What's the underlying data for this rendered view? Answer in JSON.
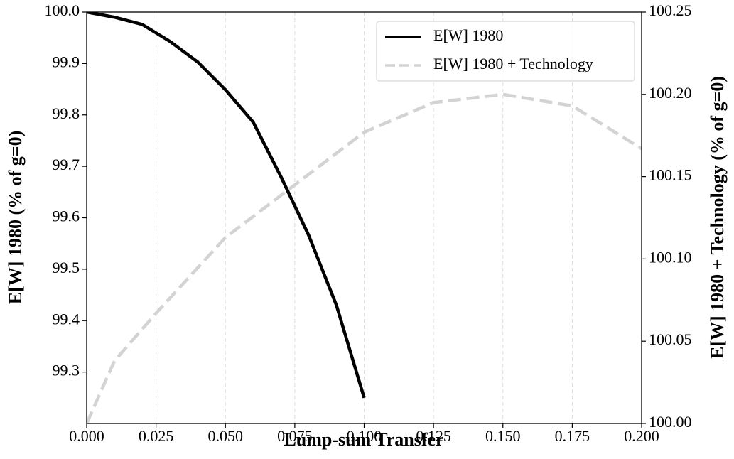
{
  "chart_data": {
    "type": "line",
    "xlabel": "Lump-sum Transfer",
    "ylabel": "E[W] 1980 (% of g=0)",
    "y2label": "E[W] 1980 + Technology (% of g=0)",
    "xlim": [
      0,
      0.2
    ],
    "ylim": [
      99.2,
      100.0
    ],
    "y2lim": [
      100.0,
      100.25
    ],
    "xticks": [
      {
        "value": 0,
        "label": "0.000"
      },
      {
        "value": 0.025,
        "label": "0.025"
      },
      {
        "value": 0.05,
        "label": "0.050"
      },
      {
        "value": 0.075,
        "label": "0.075"
      },
      {
        "value": 0.1,
        "label": "0.100"
      },
      {
        "value": 0.125,
        "label": "0.125"
      },
      {
        "value": 0.15,
        "label": "0.150"
      },
      {
        "value": 0.175,
        "label": "0.175"
      },
      {
        "value": 0.2,
        "label": "0.200"
      }
    ],
    "yticks": [
      99.3,
      99.4,
      99.5,
      99.6,
      99.7,
      99.8,
      99.9,
      {
        "value": 100.0,
        "label": "100.0"
      }
    ],
    "y2ticks": [
      {
        "value": 100.0,
        "label": "100.00"
      },
      100.05,
      {
        "value": 100.1,
        "label": "100.10"
      },
      100.15,
      {
        "value": 100.2,
        "label": "100.20"
      },
      100.25
    ],
    "grid": "x",
    "legend": "upper right",
    "series": [
      {
        "name": "E[W] 1980",
        "color": "#000000",
        "dashed": false,
        "x": [
          0,
          0.01,
          0.02,
          0.03,
          0.04,
          0.05,
          0.06,
          0.07,
          0.08,
          0.09,
          0.1
        ],
        "values": [
          100.0,
          99.99,
          99.976,
          99.943,
          99.903,
          99.849,
          99.786,
          99.68,
          99.566,
          99.43,
          99.25
        ]
      },
      {
        "name": "E[W] 1980 + Technology",
        "color": "#d3d3d3",
        "dashed": true,
        "axis": "y2",
        "x": [
          0,
          0.01,
          0.025,
          0.05,
          0.075,
          0.1,
          0.125,
          0.15,
          0.175,
          0.2
        ],
        "values": [
          100.0,
          100.038,
          100.067,
          100.113,
          100.145,
          100.177,
          100.195,
          100.2,
          100.193,
          100.167
        ]
      }
    ]
  }
}
